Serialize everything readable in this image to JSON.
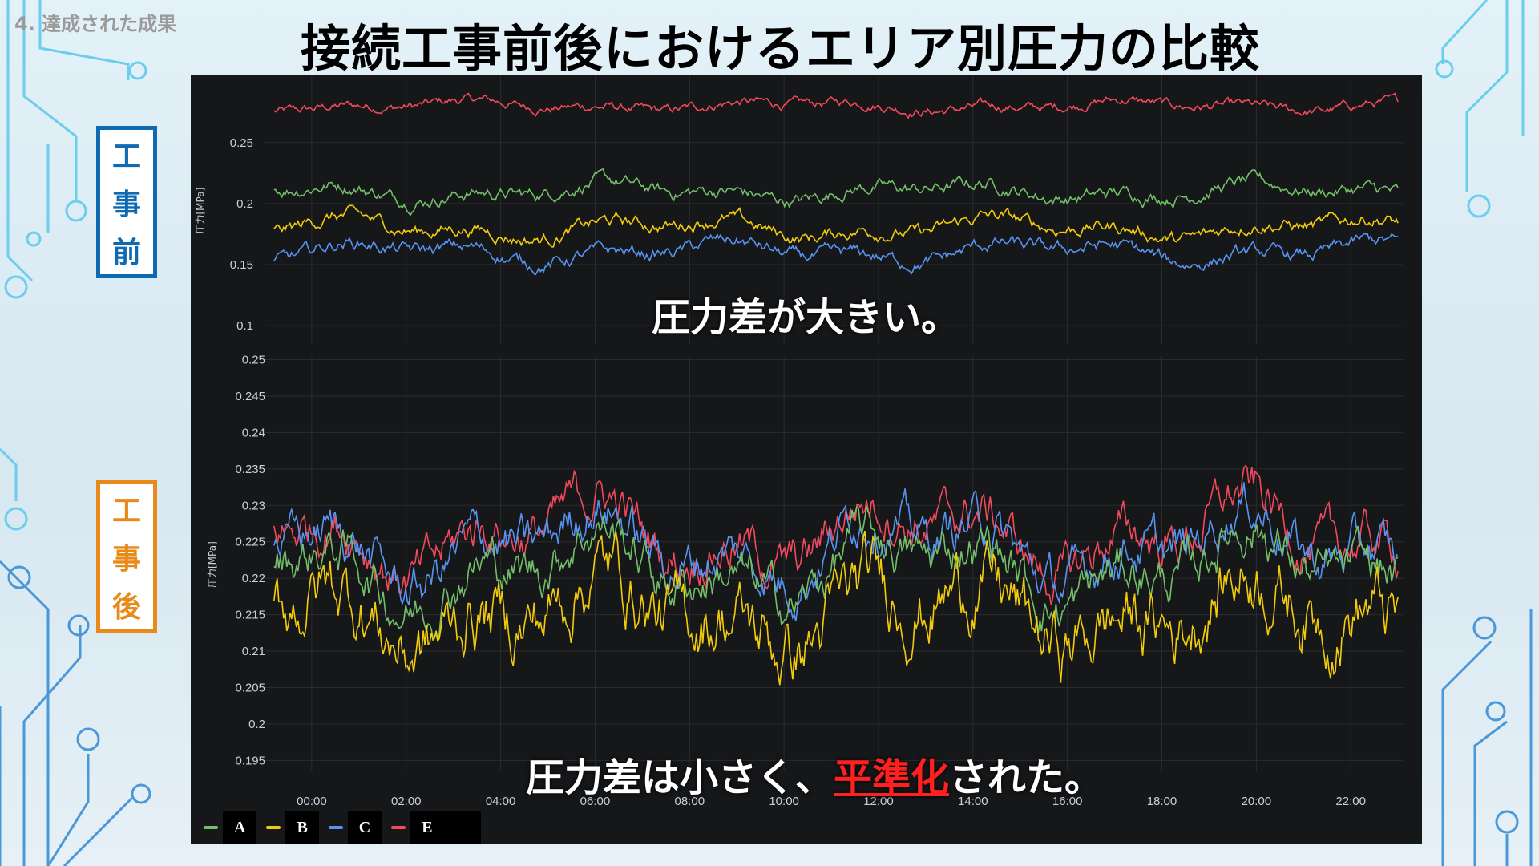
{
  "section_label": "4. 達成された成果",
  "slide_title": "接続工事前後におけるエリア別圧力の比較",
  "side_labels": {
    "before": [
      "工",
      "事",
      "前"
    ],
    "after": [
      "工",
      "事",
      "後"
    ]
  },
  "annotations": {
    "top": "圧力差が大きい。",
    "bottom_prefix": "圧力差は小さく、",
    "bottom_highlight": "平準化",
    "bottom_suffix": "された。"
  },
  "legend": [
    {
      "name": "A",
      "color": "#73bf69"
    },
    {
      "name": "B",
      "color": "#f2cc0c"
    },
    {
      "name": "C",
      "color": "#5794f2"
    },
    {
      "name": "E",
      "color": "#f2495c"
    }
  ],
  "chart_data": [
    {
      "type": "line",
      "panel": "工事前",
      "ylabel": "圧力[MPa]",
      "yticks": [
        "0.1",
        "0.15",
        "0.2",
        "0.25"
      ],
      "ylim": [
        0.085,
        0.305
      ],
      "xlim": [
        -1,
        23.1
      ],
      "grid": true,
      "series": [
        {
          "name": "E",
          "color": "#f2495c",
          "base": 0.28,
          "amp": 0.005,
          "noise": 0.005
        },
        {
          "name": "A",
          "color": "#73bf69",
          "base": 0.21,
          "amp": 0.008,
          "noise": 0.007
        },
        {
          "name": "B",
          "color": "#f2cc0c",
          "base": 0.18,
          "amp": 0.01,
          "noise": 0.007
        },
        {
          "name": "C",
          "color": "#5794f2",
          "base": 0.16,
          "amp": 0.01,
          "noise": 0.007
        }
      ]
    },
    {
      "type": "line",
      "panel": "工事後",
      "ylabel": "圧力[MPa]",
      "yticks": [
        "0.195",
        "0.2",
        "0.205",
        "0.21",
        "0.215",
        "0.22",
        "0.225",
        "0.23",
        "0.235",
        "0.24",
        "0.245",
        "0.25"
      ],
      "xticks": [
        "00:00",
        "02:00",
        "04:00",
        "06:00",
        "08:00",
        "10:00",
        "12:00",
        "14:00",
        "16:00",
        "18:00",
        "20:00",
        "22:00"
      ],
      "ylim": [
        0.1935,
        0.2505
      ],
      "xlim": [
        -1,
        23.1
      ],
      "grid": true,
      "series": [
        {
          "name": "E",
          "color": "#f2495c",
          "base": 0.226,
          "amp": 0.006,
          "noise": 0.004
        },
        {
          "name": "C",
          "color": "#5794f2",
          "base": 0.2245,
          "amp": 0.006,
          "noise": 0.004
        },
        {
          "name": "A",
          "color": "#73bf69",
          "base": 0.2215,
          "amp": 0.006,
          "noise": 0.004
        },
        {
          "name": "B",
          "color": "#f2cc0c",
          "base": 0.2155,
          "amp": 0.006,
          "noise": 0.006
        }
      ]
    }
  ]
}
